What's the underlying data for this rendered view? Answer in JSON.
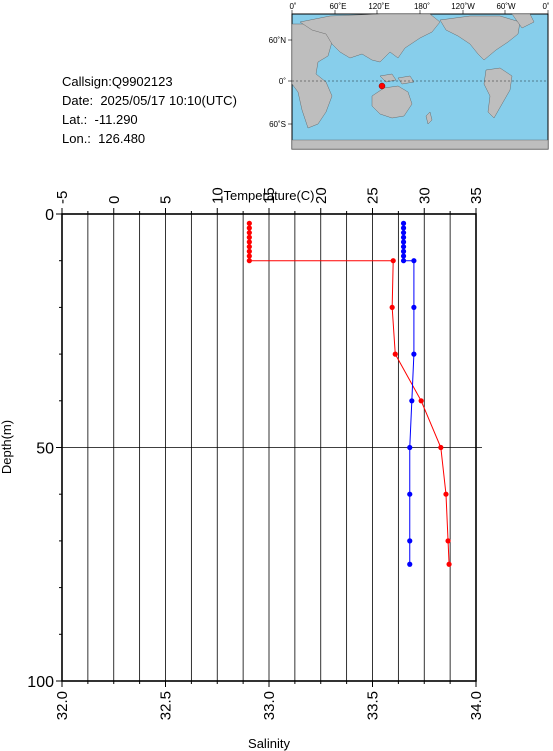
{
  "station": {
    "callsign_label": "Callsign:",
    "callsign": "Q9902123",
    "date_label": "Date:",
    "date": "2025/05/17 10:10(UTC)",
    "lat_label": "Lat.:",
    "lat": "-11.290",
    "lon_label": "Lon.:",
    "lon": "126.480"
  },
  "map": {
    "top_labels": [
      "0˚",
      "60˚E",
      "120˚E",
      "180˚",
      "120˚W",
      "60˚W",
      "0˚"
    ],
    "left_labels": [
      "60˚N",
      "0˚",
      "60˚S"
    ],
    "ocean_color": "#87ceeb",
    "land_color": "#bebebe",
    "marker_color": "#ff0000"
  },
  "chart_data": {
    "type": "line",
    "title": "",
    "top_axis_label": "Temperature(C)",
    "bottom_axis_label": "Salinity",
    "left_axis_label": "Depth(m)",
    "temperature_range": [
      -5,
      35
    ],
    "temperature_ticks": [
      "-5",
      "0",
      "5",
      "10",
      "15",
      "20",
      "25",
      "30",
      "35"
    ],
    "salinity_range": [
      32.0,
      34.0
    ],
    "salinity_ticks": [
      "32.0",
      "32.5",
      "33.0",
      "33.5",
      "34.0"
    ],
    "depth_range": [
      0,
      100
    ],
    "depth_ticks": [
      "0",
      "50",
      "100"
    ],
    "grid": true,
    "series": [
      {
        "quantity": "temperature",
        "color": "#ff0000",
        "points": [
          {
            "depth": 2,
            "value": 13.1
          },
          {
            "depth": 3,
            "value": 13.1
          },
          {
            "depth": 4,
            "value": 13.1
          },
          {
            "depth": 5,
            "value": 13.1
          },
          {
            "depth": 6,
            "value": 13.1
          },
          {
            "depth": 7,
            "value": 13.1
          },
          {
            "depth": 8,
            "value": 13.1
          },
          {
            "depth": 9,
            "value": 13.1
          },
          {
            "depth": 10,
            "value": 13.1
          },
          {
            "depth": 10,
            "value": 27.0
          },
          {
            "depth": 20,
            "value": 26.9
          },
          {
            "depth": 30,
            "value": 27.2
          },
          {
            "depth": 40,
            "value": 29.7
          },
          {
            "depth": 50,
            "value": 31.6
          },
          {
            "depth": 60,
            "value": 32.1
          },
          {
            "depth": 70,
            "value": 32.3
          },
          {
            "depth": 75,
            "value": 32.4
          }
        ]
      },
      {
        "quantity": "salinity",
        "color": "#0000ff",
        "points": [
          {
            "depth": 2,
            "value": 33.65
          },
          {
            "depth": 3,
            "value": 33.65
          },
          {
            "depth": 4,
            "value": 33.65
          },
          {
            "depth": 5,
            "value": 33.65
          },
          {
            "depth": 6,
            "value": 33.65
          },
          {
            "depth": 7,
            "value": 33.65
          },
          {
            "depth": 8,
            "value": 33.65
          },
          {
            "depth": 9,
            "value": 33.65
          },
          {
            "depth": 10,
            "value": 33.65
          },
          {
            "depth": 10,
            "value": 33.7
          },
          {
            "depth": 20,
            "value": 33.7
          },
          {
            "depth": 30,
            "value": 33.7
          },
          {
            "depth": 40,
            "value": 33.69
          },
          {
            "depth": 50,
            "value": 33.68
          },
          {
            "depth": 60,
            "value": 33.68
          },
          {
            "depth": 70,
            "value": 33.68
          },
          {
            "depth": 75,
            "value": 33.68
          }
        ]
      }
    ]
  }
}
